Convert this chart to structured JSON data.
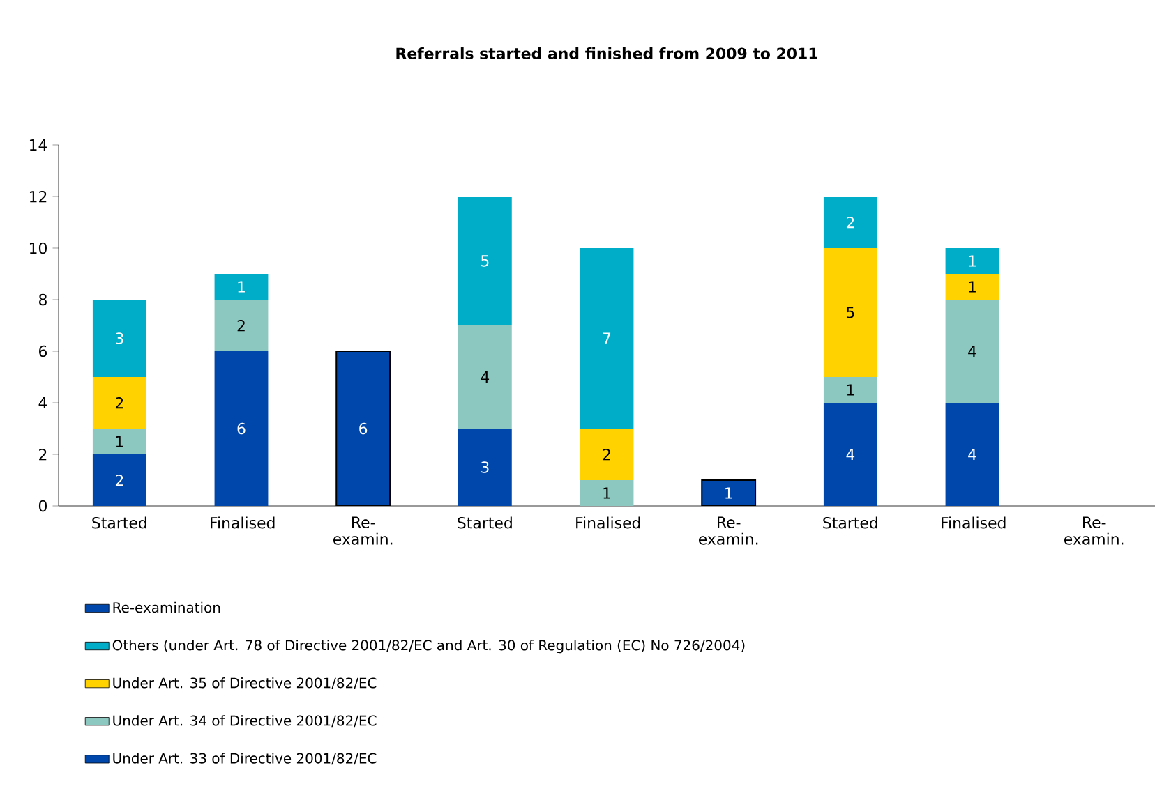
{
  "chart_data": {
    "type": "bar",
    "stacked": true,
    "title": "Referrals started and finished from 2009 to 2011",
    "categories": [
      "Started",
      "Finalised",
      "Re-examin.",
      "Started",
      "Finalised",
      "Re-examin.",
      "Started",
      "Finalised",
      "Re-examin."
    ],
    "series": [
      {
        "name": "Under Art. 33 of Directive 2001/82/EC",
        "color": "#0047ab",
        "values": [
          2,
          6,
          null,
          3,
          null,
          null,
          4,
          4,
          null
        ]
      },
      {
        "name": "Under Art. 34 of Directive 2001/82/EC",
        "color": "#8cc8c0",
        "values": [
          1,
          2,
          null,
          4,
          1,
          null,
          1,
          4,
          null
        ]
      },
      {
        "name": "Under Art. 35 of Directive 2001/82/EC",
        "color": "#ffd200",
        "values": [
          2,
          null,
          null,
          null,
          2,
          null,
          5,
          1,
          null
        ]
      },
      {
        "name": "Others (under Art. 78 of Directive 2001/82/EC and Art. 30 of Regulation (EC) No 726/2004)",
        "color": "#00adc8",
        "values": [
          3,
          1,
          null,
          5,
          7,
          null,
          2,
          1,
          null
        ]
      },
      {
        "name": "Re-examination",
        "color": "#0047ab",
        "values": [
          null,
          null,
          6,
          null,
          null,
          1,
          null,
          null,
          null
        ]
      }
    ],
    "ylim": [
      0,
      14
    ],
    "yticks": [
      0,
      2,
      4,
      6,
      8,
      10,
      12,
      14
    ],
    "grid": false,
    "legend": "bottom",
    "data_labels": true
  }
}
